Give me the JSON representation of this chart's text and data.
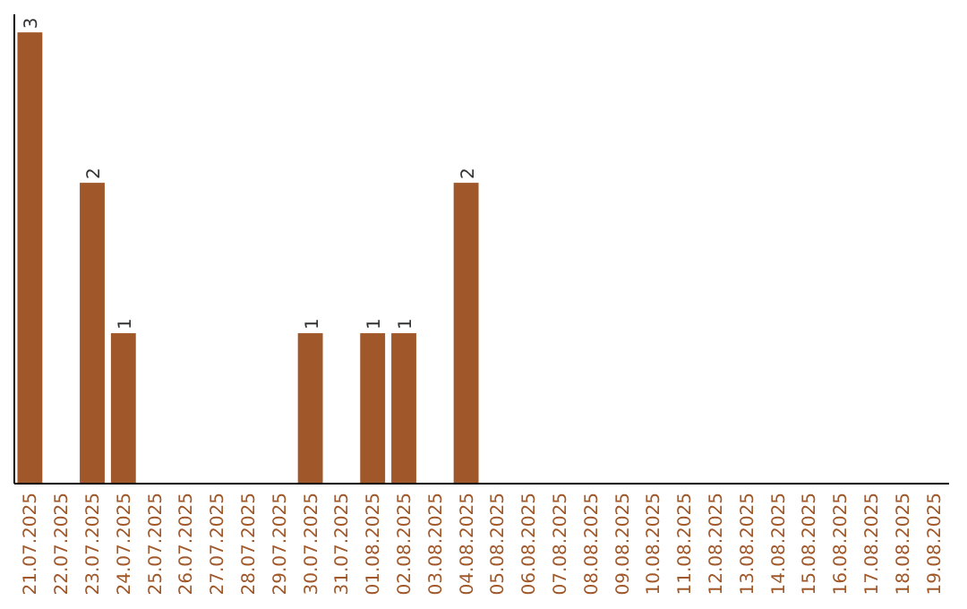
{
  "chart_data": {
    "type": "bar",
    "categories": [
      "21.07.2025",
      "22.07.2025",
      "23.07.2025",
      "24.07.2025",
      "25.07.2025",
      "26.07.2025",
      "27.07.2025",
      "28.07.2025",
      "29.07.2025",
      "30.07.2025",
      "31.07.2025",
      "01.08.2025",
      "02.08.2025",
      "03.08.2025",
      "04.08.2025",
      "05.08.2025",
      "06.08.2025",
      "07.08.2025",
      "08.08.2025",
      "09.08.2025",
      "10.08.2025",
      "11.08.2025",
      "12.08.2025",
      "13.08.2025",
      "14.08.2025",
      "15.08.2025",
      "16.08.2025",
      "17.08.2025",
      "18.08.2025",
      "19.08.2025"
    ],
    "values": [
      3,
      0,
      2,
      1,
      0,
      0,
      0,
      0,
      0,
      1,
      0,
      1,
      1,
      0,
      2,
      0,
      0,
      0,
      0,
      0,
      0,
      0,
      0,
      0,
      0,
      0,
      0,
      0,
      0,
      0
    ],
    "value_labels": [
      "3",
      null,
      "2",
      "1",
      null,
      null,
      null,
      null,
      null,
      "1",
      null,
      "1",
      "1",
      null,
      "2",
      null,
      null,
      null,
      null,
      null,
      null,
      null,
      null,
      null,
      null,
      null,
      null,
      null,
      null,
      null
    ],
    "color": "#a0582a"
  }
}
